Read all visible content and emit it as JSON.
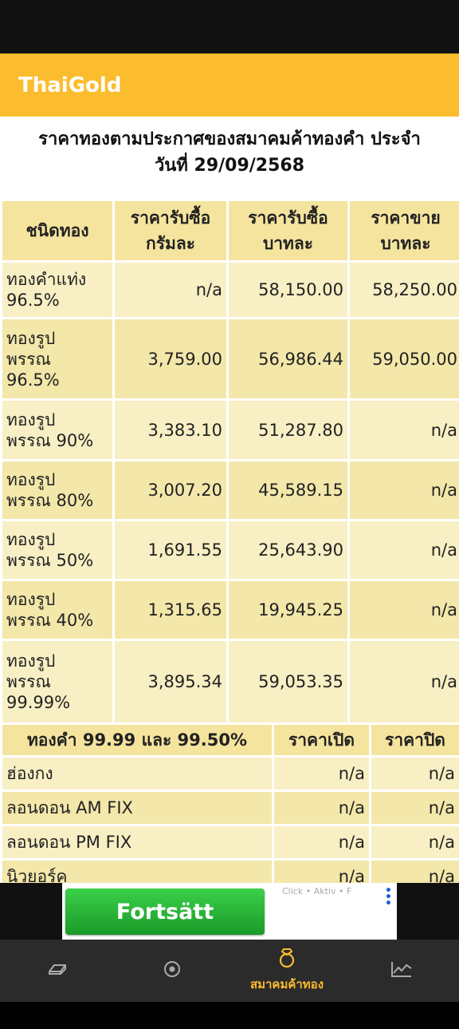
{
  "app": {
    "title": "ThaiGold"
  },
  "page": {
    "heading_line1": "ราคาทองตามประกาศของสมาคมค้าทองคำ ประจำ",
    "heading_line2": "วันที่ 29/09/2568"
  },
  "gold_table": {
    "headers": [
      [
        "ชนิดทอง"
      ],
      [
        "ราคารับซื้อ",
        "กรัมละ"
      ],
      [
        "ราคารับซื้อ",
        "บาทละ"
      ],
      [
        "ราคาขาย",
        "บาทละ"
      ]
    ],
    "rows": [
      {
        "name": [
          "ทองคำแท่ง",
          "96.5%"
        ],
        "buy_gram": "n/a",
        "buy_baht": "58,150.00",
        "sell_baht": "58,250.00"
      },
      {
        "name": [
          "ทองรูป",
          "พรรณ",
          "96.5%"
        ],
        "buy_gram": "3,759.00",
        "buy_baht": "56,986.44",
        "sell_baht": "59,050.00"
      },
      {
        "name": [
          "ทองรูป",
          "พรรณ 90%"
        ],
        "buy_gram": "3,383.10",
        "buy_baht": "51,287.80",
        "sell_baht": "n/a"
      },
      {
        "name": [
          "ทองรูป",
          "พรรณ 80%"
        ],
        "buy_gram": "3,007.20",
        "buy_baht": "45,589.15",
        "sell_baht": "n/a"
      },
      {
        "name": [
          "ทองรูป",
          "พรรณ 50%"
        ],
        "buy_gram": "1,691.55",
        "buy_baht": "25,643.90",
        "sell_baht": "n/a"
      },
      {
        "name": [
          "ทองรูป",
          "พรรณ 40%"
        ],
        "buy_gram": "1,315.65",
        "buy_baht": "19,945.25",
        "sell_baht": "n/a"
      },
      {
        "name": [
          "ทองรูป",
          "พรรณ",
          "99.99%"
        ],
        "buy_gram": "3,895.34",
        "buy_baht": "59,053.35",
        "sell_baht": "n/a"
      }
    ]
  },
  "world_table": {
    "headers": [
      "ทองคำ 99.99 และ 99.50%",
      "ราคาเปิด",
      "ราคาปิด"
    ],
    "rows": [
      {
        "name": "ฮ่องกง",
        "open": "n/a",
        "close": "n/a"
      },
      {
        "name": "ลอนดอน AM FIX",
        "open": "n/a",
        "close": "n/a"
      },
      {
        "name": "ลอนดอน PM FIX",
        "open": "n/a",
        "close": "n/a"
      },
      {
        "name": "นิวยอร์ค",
        "open": "n/a",
        "close": "n/a"
      }
    ]
  },
  "ad": {
    "button_label": "Fortsätt",
    "side_text": [
      "Click",
      "Aktiv",
      "F"
    ]
  },
  "nav": {
    "items": [
      {
        "icon": "gold-bar-icon",
        "label": ""
      },
      {
        "icon": "target-icon",
        "label": ""
      },
      {
        "icon": "ring-icon",
        "label": "สมาคมค้าทอง",
        "active": true
      },
      {
        "icon": "chart-line-icon",
        "label": ""
      }
    ]
  },
  "colors": {
    "accent": "#fbbd2e",
    "header_cell": "#f5e49e",
    "row_light": "#f8efc4",
    "row_dark": "#f3e7aa"
  }
}
